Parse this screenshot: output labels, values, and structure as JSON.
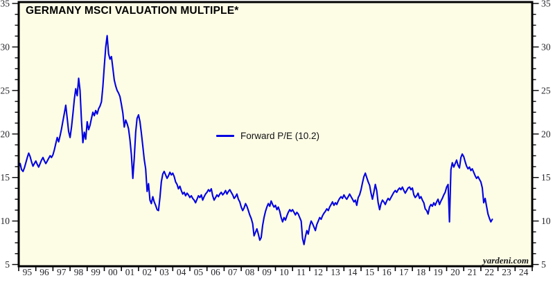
{
  "title": "GERMANY MSCI VALUATION MULTIPLE*",
  "legend": {
    "label": "Forward P/E (10.2)"
  },
  "watermark": "yardeni.com",
  "colors": {
    "line": "#0000e0",
    "plot_background": "#fdfde6",
    "border": "#000000",
    "tick_label": "#26262b"
  },
  "chart_data": {
    "type": "line",
    "title": "GERMANY MSCI VALUATION MULTIPLE*",
    "grid": false,
    "legend_position": "center",
    "x_axis": {
      "start": 1995,
      "end": 2025,
      "tick_labels": [
        "95",
        "96",
        "97",
        "98",
        "99",
        "00",
        "01",
        "02",
        "03",
        "04",
        "05",
        "06",
        "07",
        "08",
        "09",
        "10",
        "11",
        "12",
        "13",
        "14",
        "15",
        "16",
        "17",
        "18",
        "19",
        "20",
        "21",
        "22",
        "23",
        "24"
      ]
    },
    "y_axis": {
      "min": 5,
      "max": 35,
      "major_ticks": [
        5,
        10,
        15,
        20,
        25,
        30,
        35
      ],
      "minor_per_major": 4,
      "sides": [
        "left",
        "right"
      ]
    },
    "series": [
      {
        "name": "Forward P/E (10.2)",
        "latest_value": 10.2,
        "start_year": 1995,
        "frequency": "monthly",
        "values": [
          16.2,
          16.6,
          15.9,
          15.7,
          16.1,
          16.7,
          17.3,
          17.8,
          17.4,
          16.8,
          16.3,
          16.6,
          16.9,
          16.5,
          16.2,
          16.6,
          17.0,
          17.3,
          16.9,
          16.6,
          16.9,
          17.2,
          17.5,
          17.3,
          17.6,
          18.2,
          18.9,
          19.6,
          19.1,
          19.8,
          20.6,
          21.5,
          22.4,
          23.3,
          21.8,
          20.3,
          19.6,
          20.8,
          22.3,
          24.0,
          25.2,
          24.4,
          26.4,
          25.0,
          21.5,
          19.0,
          20.2,
          19.4,
          21.4,
          20.5,
          21.0,
          21.8,
          22.5,
          22.1,
          22.7,
          22.3,
          22.9,
          23.2,
          23.7,
          25.4,
          27.8,
          30.0,
          31.3,
          29.2,
          28.6,
          28.9,
          27.6,
          26.2,
          25.5,
          25.0,
          24.7,
          24.3,
          23.4,
          22.4,
          20.8,
          21.6,
          21.2,
          20.6,
          19.3,
          17.6,
          14.9,
          17.2,
          20.2,
          21.8,
          22.2,
          21.4,
          20.1,
          18.6,
          17.1,
          16.0,
          13.4,
          14.3,
          12.4,
          12.0,
          12.8,
          12.2,
          11.8,
          11.3,
          11.2,
          12.7,
          14.5,
          15.4,
          15.7,
          15.3,
          14.9,
          15.2,
          15.6,
          15.3,
          15.5,
          15.1,
          14.5,
          14.2,
          13.7,
          14.0,
          13.5,
          13.1,
          13.3,
          12.9,
          13.2,
          13.0,
          12.7,
          12.9,
          12.6,
          12.4,
          12.1,
          12.5,
          12.9,
          12.7,
          13.0,
          12.4,
          12.8,
          13.1,
          13.3,
          13.6,
          13.4,
          13.7,
          12.9,
          12.4,
          12.7,
          13.0,
          12.8,
          13.1,
          13.3,
          13.0,
          13.2,
          13.5,
          13.1,
          13.4,
          13.6,
          13.3,
          13.0,
          12.6,
          12.8,
          13.1,
          12.5,
          12.2,
          11.6,
          11.2,
          11.5,
          12.0,
          11.7,
          11.2,
          10.7,
          10.3,
          9.7,
          8.3,
          8.7,
          9.1,
          8.5,
          7.8,
          8.1,
          9.5,
          10.4,
          11.1,
          11.6,
          12.0,
          11.7,
          12.3,
          11.9,
          11.6,
          11.8,
          11.3,
          11.6,
          11.1,
          10.4,
          9.9,
          10.4,
          10.1,
          10.6,
          11.0,
          11.3,
          11.1,
          11.3,
          11.0,
          10.7,
          11.0,
          10.8,
          10.4,
          10.0,
          8.0,
          7.3,
          8.2,
          8.9,
          8.5,
          9.4,
          10.0,
          9.7,
          9.3,
          8.9,
          9.6,
          10.0,
          10.4,
          10.2,
          10.6,
          10.9,
          11.1,
          11.4,
          11.2,
          11.6,
          11.9,
          12.2,
          11.8,
          12.1,
          11.9,
          12.3,
          12.6,
          12.8,
          12.6,
          13.0,
          12.7,
          12.5,
          12.8,
          13.1,
          12.8,
          12.5,
          12.2,
          12.4,
          11.8,
          12.7,
          13.0,
          13.6,
          14.4,
          15.1,
          15.5,
          15.0,
          14.5,
          14.1,
          13.2,
          12.5,
          13.3,
          14.2,
          13.5,
          12.1,
          11.3,
          12.0,
          12.4,
          12.2,
          11.9,
          12.3,
          12.6,
          12.4,
          12.7,
          13.0,
          13.3,
          13.5,
          13.3,
          13.6,
          13.8,
          13.6,
          13.9,
          13.5,
          13.2,
          13.5,
          13.8,
          13.9,
          13.6,
          13.8,
          13.0,
          12.7,
          12.9,
          13.2,
          12.6,
          12.8,
          12.4,
          12.1,
          11.4,
          11.2,
          10.8,
          11.6,
          11.9,
          11.7,
          12.1,
          11.8,
          12.2,
          12.5,
          11.9,
          12.3,
          12.6,
          13.0,
          13.3,
          13.9,
          14.2,
          9.9,
          15.9,
          16.7,
          16.2,
          16.6,
          17.0,
          16.4,
          16.1,
          17.3,
          17.7,
          17.4,
          16.8,
          16.3,
          16.0,
          16.2,
          15.8,
          16.0,
          15.6,
          15.2,
          14.9,
          15.1,
          14.8,
          14.5,
          13.8,
          12.1,
          12.6,
          11.7,
          10.8,
          10.3,
          9.9,
          10.2
        ]
      }
    ]
  }
}
